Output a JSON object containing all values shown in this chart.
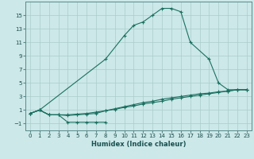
{
  "xlabel": "Humidex (Indice chaleur)",
  "background_color": "#cce8e8",
  "grid_color": "#aacccc",
  "line_color": "#1a7060",
  "xlim": [
    -0.5,
    23.5
  ],
  "ylim": [
    -2,
    17
  ],
  "xticks": [
    0,
    1,
    2,
    3,
    4,
    5,
    6,
    7,
    8,
    9,
    10,
    11,
    12,
    13,
    14,
    15,
    16,
    17,
    18,
    19,
    20,
    21,
    22,
    23
  ],
  "yticks": [
    -1,
    1,
    3,
    5,
    7,
    9,
    11,
    13,
    15
  ],
  "l1x": [
    0,
    1,
    2,
    3,
    4,
    5,
    6,
    7,
    8
  ],
  "l1y": [
    0.5,
    1.0,
    0.3,
    0.3,
    -0.8,
    -0.8,
    -0.8,
    -0.8,
    -0.8
  ],
  "l2x": [
    0,
    1,
    8,
    10,
    11,
    12,
    13,
    14,
    15,
    16,
    17,
    19,
    20,
    21,
    22,
    23
  ],
  "l2y": [
    0.5,
    1.0,
    8.5,
    12.0,
    13.5,
    14.0,
    15.0,
    16.0,
    16.0,
    15.5,
    11.0,
    8.5,
    5.0,
    4.0,
    4.0,
    4.0
  ],
  "l3x": [
    0,
    1,
    2,
    3,
    4,
    5,
    6,
    7,
    8,
    9,
    10,
    11,
    12,
    13,
    14,
    15,
    16,
    17,
    18,
    19,
    20,
    21,
    22,
    23
  ],
  "l3y": [
    0.5,
    1.0,
    0.3,
    0.3,
    0.3,
    0.4,
    0.5,
    0.7,
    0.9,
    1.1,
    1.4,
    1.6,
    1.9,
    2.1,
    2.3,
    2.6,
    2.8,
    3.0,
    3.2,
    3.4,
    3.6,
    3.8,
    4.0,
    4.0
  ],
  "l4x": [
    0,
    1,
    2,
    3,
    4,
    5,
    6,
    7,
    8,
    9,
    10,
    11,
    12,
    13,
    14,
    15,
    16,
    17,
    18,
    19,
    20,
    21,
    22,
    23
  ],
  "l4y": [
    0.5,
    1.0,
    0.3,
    0.3,
    0.2,
    0.3,
    0.4,
    0.5,
    0.9,
    1.2,
    1.5,
    1.8,
    2.1,
    2.3,
    2.6,
    2.8,
    3.0,
    3.2,
    3.4,
    3.5,
    3.7,
    3.8,
    4.0,
    4.0
  ]
}
